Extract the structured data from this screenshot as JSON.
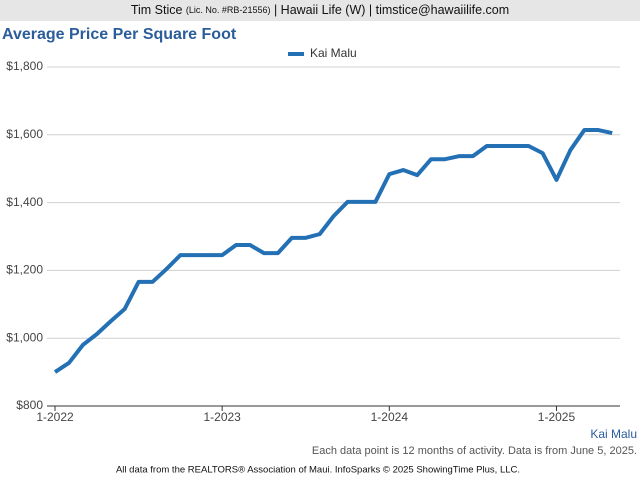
{
  "header": {
    "name": "Tim Stice",
    "license": "(Lic. No. #RB-21556)",
    "rest": "| Hawaii Life (W) | timstice@hawaiilife.com"
  },
  "chart_data": {
    "type": "line",
    "title": "Average Price Per Square Foot",
    "categories": [
      "1-2022",
      null,
      null,
      null,
      null,
      null,
      null,
      null,
      null,
      null,
      null,
      null,
      "1-2023",
      null,
      null,
      null,
      null,
      null,
      null,
      null,
      null,
      null,
      null,
      null,
      "1-2024",
      null,
      null,
      null,
      null,
      null,
      null,
      null,
      null,
      null,
      null,
      null,
      "1-2025",
      null,
      null,
      null,
      null
    ],
    "series": [
      {
        "name": "Kai Malu",
        "color": "#2470b5",
        "values": [
          900,
          927,
          980,
          1012,
          1050,
          1086,
          1166,
          1166,
          1204,
          1245,
          1245,
          1245,
          1245,
          1275,
          1275,
          1251,
          1251,
          1296,
          1296,
          1307,
          1360,
          1402,
          1402,
          1402,
          1484,
          1496,
          1481,
          1528,
          1528,
          1537,
          1537,
          1567,
          1567,
          1567,
          1567,
          1546,
          1467,
          1555,
          1614,
          1614,
          1605
        ]
      }
    ],
    "ylim": [
      800,
      1800
    ],
    "yticks": [
      {
        "value": 800,
        "label": "$800"
      },
      {
        "value": 1000,
        "label": "$1,000"
      },
      {
        "value": 1200,
        "label": "$1,200"
      },
      {
        "value": 1400,
        "label": "$1,400"
      },
      {
        "value": 1600,
        "label": "$1,600"
      },
      {
        "value": 1800,
        "label": "$1,800"
      }
    ],
    "grid": true,
    "legend": "top"
  },
  "footer": {
    "series_note": "Kai Malu",
    "note": "Each data point is 12 months of activity. Data is from June 5, 2025.",
    "credit": "All data from the REALTORS® Association of Maui. InfoSparks © 2025 ShowingTime Plus, LLC."
  }
}
